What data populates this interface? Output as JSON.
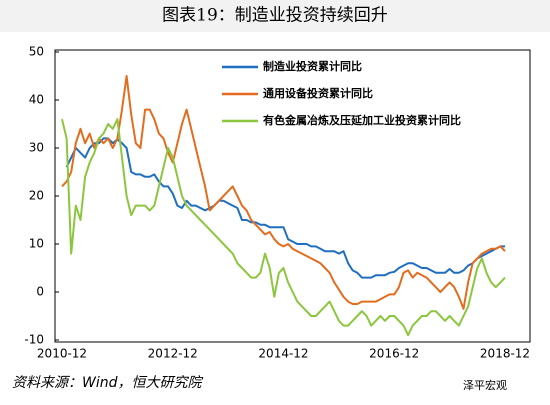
{
  "chart_data": {
    "type": "line",
    "title": "图表19：制造业投资持续回升",
    "source": "资料来源：Wind，恒大研究院",
    "watermark": "泽平宏观",
    "categories": [
      "2010-12",
      null,
      null,
      null,
      null,
      null,
      null,
      null,
      null,
      null,
      null,
      null,
      null,
      null,
      null,
      null,
      null,
      null,
      null,
      null,
      null,
      null,
      null,
      null,
      "2012-12",
      null,
      null,
      null,
      null,
      null,
      null,
      null,
      null,
      null,
      null,
      null,
      null,
      null,
      null,
      null,
      null,
      null,
      null,
      null,
      null,
      null,
      null,
      null,
      "2014-12",
      null,
      null,
      null,
      null,
      null,
      null,
      null,
      null,
      null,
      null,
      null,
      null,
      null,
      null,
      null,
      null,
      null,
      null,
      null,
      null,
      null,
      null,
      null,
      "2016-12",
      null,
      null,
      null,
      null,
      null,
      null,
      null,
      null,
      null,
      null,
      null,
      null,
      null,
      null,
      null,
      null,
      null,
      null,
      null,
      null,
      null,
      null,
      null,
      "2018-12"
    ],
    "ylim": [
      -10,
      50
    ],
    "yticks": [
      -10,
      0,
      10,
      20,
      30,
      40,
      50
    ],
    "grid": false,
    "legend": "upper right",
    "series": [
      {
        "name": "制造业投资累计同比",
        "color": "#1f6fc0",
        "values": [
          null,
          26,
          28,
          30,
          29,
          28,
          30,
          31,
          31,
          32,
          32,
          31,
          31.8,
          31,
          30,
          25,
          24.5,
          24.5,
          24,
          24,
          24.5,
          23,
          22,
          22,
          20.5,
          18,
          17.5,
          19,
          18,
          18,
          17.5,
          17,
          17.5,
          18,
          19,
          19,
          18.5,
          18,
          17.5,
          15,
          15,
          14.5,
          14.5,
          14,
          14,
          13.5,
          13.5,
          13.5,
          13.5,
          11,
          10.5,
          10,
          10,
          10,
          9.5,
          9.5,
          9,
          8.5,
          8.5,
          8.5,
          8,
          8.5,
          6,
          4.5,
          4,
          3,
          3,
          3,
          3.5,
          3.5,
          3.5,
          4,
          4.2,
          5,
          5.5,
          6,
          6,
          5.5,
          5,
          5,
          4.5,
          4,
          4,
          4,
          4.8,
          4,
          4,
          4.5,
          5.5,
          6,
          7,
          7.5,
          8,
          8.5,
          9,
          9.5,
          9.5
        ]
      },
      {
        "name": "通用设备投资累计同比",
        "color": "#e46c1e",
        "values": [
          22,
          23,
          25,
          31,
          34,
          31,
          33,
          30,
          32,
          31,
          32,
          30,
          32,
          38,
          45,
          37,
          31,
          30,
          38,
          38,
          36,
          33,
          32,
          29,
          27,
          31,
          35,
          38,
          34,
          30,
          26,
          22,
          17,
          18,
          19,
          20,
          21,
          22,
          20,
          18,
          17,
          15,
          14,
          13,
          12,
          12.5,
          11,
          10,
          9.5,
          10,
          9,
          8.5,
          8,
          7.5,
          7,
          6.5,
          6,
          5,
          4,
          2,
          0.5,
          -1,
          -2,
          -2.5,
          -2.5,
          -2,
          -2,
          -2,
          -2,
          -1.5,
          -1,
          -0.5,
          -0.5,
          1,
          4,
          4.5,
          3,
          4,
          3.5,
          3,
          2,
          1,
          0,
          1,
          2,
          1,
          -1,
          -3.5,
          2,
          6,
          7,
          8,
          8.5,
          9,
          9,
          9.5,
          8.5
        ]
      },
      {
        "name": "有色金属冶炼及压延加工业投资累计同比",
        "color": "#8cc63f",
        "values": [
          36,
          32,
          8,
          18,
          15,
          24,
          27,
          29,
          32,
          33,
          35,
          34,
          36,
          28,
          20,
          16,
          18,
          18,
          18,
          17,
          18,
          22,
          26,
          30,
          28,
          24,
          20,
          18,
          17,
          16,
          15,
          14,
          13,
          12,
          11,
          10,
          9,
          8,
          6,
          5,
          4,
          3,
          3,
          4,
          8,
          5,
          -1,
          4,
          5,
          2,
          0,
          -2,
          -3,
          -4,
          -5,
          -5,
          -4,
          -3,
          -2,
          -4,
          -6,
          -7,
          -7,
          -6,
          -5,
          -4,
          -5,
          -7,
          -6,
          -5,
          -6,
          -5,
          -5,
          -6,
          -7,
          -9,
          -7,
          -6,
          -5,
          -5,
          -4,
          -4,
          -5,
          -6,
          -5,
          -6,
          -7,
          -5,
          -3,
          1,
          5,
          7,
          4,
          2,
          1,
          2,
          3
        ]
      }
    ]
  }
}
